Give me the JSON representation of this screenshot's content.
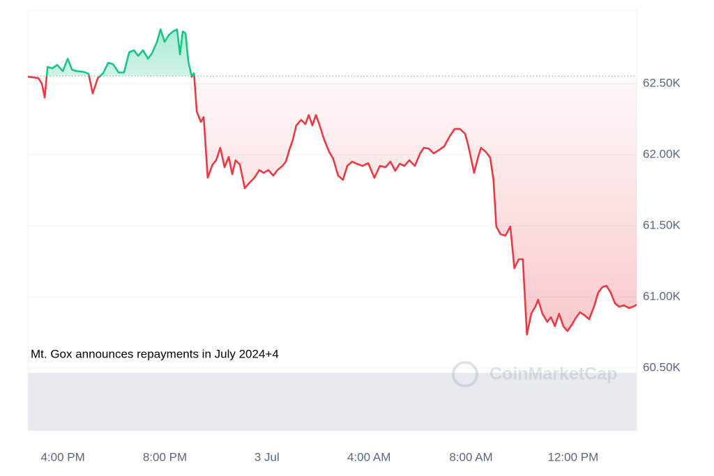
{
  "chart_data": {
    "type": "line",
    "annotation": "Mt. Gox announces repayments in July 2024+4",
    "watermark": "CoinMarketCap",
    "x": [
      14.63,
      15.04,
      15.18,
      15.29,
      15.4,
      15.59,
      15.78,
      16.0,
      16.19,
      16.36,
      16.55,
      16.82,
      17.01,
      17.17,
      17.37,
      17.58,
      17.78,
      17.97,
      18.19,
      18.4,
      18.6,
      18.79,
      18.95,
      19.14,
      19.34,
      19.5,
      19.69,
      19.83,
      19.99,
      20.16,
      20.32,
      20.48,
      20.59,
      20.7,
      20.81,
      20.92,
      21.05,
      21.14,
      21.25,
      21.41,
      21.52,
      21.68,
      21.87,
      22.01,
      22.17,
      22.34,
      22.5,
      22.64,
      22.77,
      22.94,
      23.13,
      23.32,
      23.51,
      23.7,
      23.87,
      24.06,
      24.25,
      24.41,
      24.61,
      24.74,
      24.88,
      25.02,
      25.15,
      25.34,
      25.51,
      25.64,
      25.78,
      25.92,
      26.05,
      26.24,
      26.44,
      26.6,
      26.79,
      26.98,
      27.15,
      27.34,
      27.53,
      27.75,
      27.97,
      28.21,
      28.43,
      28.65,
      28.84,
      29.03,
      29.2,
      29.39,
      29.58,
      29.8,
      30.01,
      30.15,
      30.34,
      30.53,
      30.75,
      30.95,
      31.17,
      31.36,
      31.57,
      31.77,
      31.9,
      32.12,
      32.28,
      32.39,
      32.58,
      32.75,
      32.88,
      32.99,
      33.16,
      33.35,
      33.54,
      33.7,
      33.87,
      34.03,
      34.19,
      34.36,
      34.52,
      34.63,
      34.8,
      34.99,
      35.13,
      35.29,
      35.45,
      35.62,
      35.78,
      35.95,
      36.11,
      36.27,
      36.44,
      36.63,
      36.82,
      36.98,
      37.15,
      37.31,
      37.48,
      37.64,
      37.8,
      37.99,
      38.19,
      38.35,
      38.49
    ],
    "series": [
      {
        "values": [
          62549,
          62539,
          62500,
          62402,
          62618,
          62608,
          62632,
          62588,
          62676,
          62598,
          62588,
          62583,
          62569,
          62431,
          62539,
          62574,
          62647,
          62637,
          62578,
          62578,
          62721,
          62735,
          62696,
          62735,
          62676,
          62716,
          62794,
          62882,
          62794,
          62843,
          62868,
          62882,
          62706,
          62868,
          62853,
          62657,
          62549,
          62574,
          62304,
          62230,
          62265,
          61838,
          61931,
          61961,
          62049,
          61912,
          61985,
          61863,
          61961,
          61931,
          61765,
          61804,
          61838,
          61892,
          61873,
          61892,
          61853,
          61892,
          61922,
          61951,
          62034,
          62108,
          62206,
          62245,
          62216,
          62279,
          62206,
          62279,
          62216,
          62108,
          62020,
          61971,
          61853,
          61824,
          61922,
          61951,
          61936,
          61922,
          61941,
          61838,
          61922,
          61912,
          61951,
          61887,
          61936,
          61922,
          61961,
          61922,
          62010,
          62049,
          62044,
          62010,
          62034,
          62059,
          62132,
          62181,
          62181,
          62147,
          62059,
          61873,
          61985,
          62049,
          62020,
          61980,
          61824,
          61495,
          61441,
          61431,
          61495,
          61201,
          61265,
          61265,
          60735,
          60882,
          60931,
          60980,
          60882,
          60824,
          60858,
          60794,
          60882,
          60794,
          60760,
          60804,
          60853,
          60892,
          60873,
          60843,
          60931,
          61029,
          61069,
          61078,
          61029,
          60956,
          60931,
          60941,
          60922,
          60931,
          60946
        ]
      }
    ],
    "baseline": 62554,
    "up_color": "#16c784",
    "down_color": "#ea3943",
    "xlim": [
      14.63,
      38.49
    ],
    "ylim": [
      60059,
      63015
    ],
    "xticks": [
      {
        "value": 16,
        "label": "4:00 PM"
      },
      {
        "value": 20,
        "label": "8:00 PM"
      },
      {
        "value": 24,
        "label": "3 Jul"
      },
      {
        "value": 28,
        "label": "4:00 AM"
      },
      {
        "value": 32,
        "label": "8:00 AM"
      },
      {
        "value": 36,
        "label": "12:00 PM"
      }
    ],
    "yticks": [
      {
        "value": 60500,
        "label": "60.50K"
      },
      {
        "value": 61000,
        "label": "61.00K"
      },
      {
        "value": 61500,
        "label": "61.50K"
      },
      {
        "value": 62000,
        "label": "62.00K"
      },
      {
        "value": 62500,
        "label": "62.50K"
      }
    ],
    "grid": true
  }
}
